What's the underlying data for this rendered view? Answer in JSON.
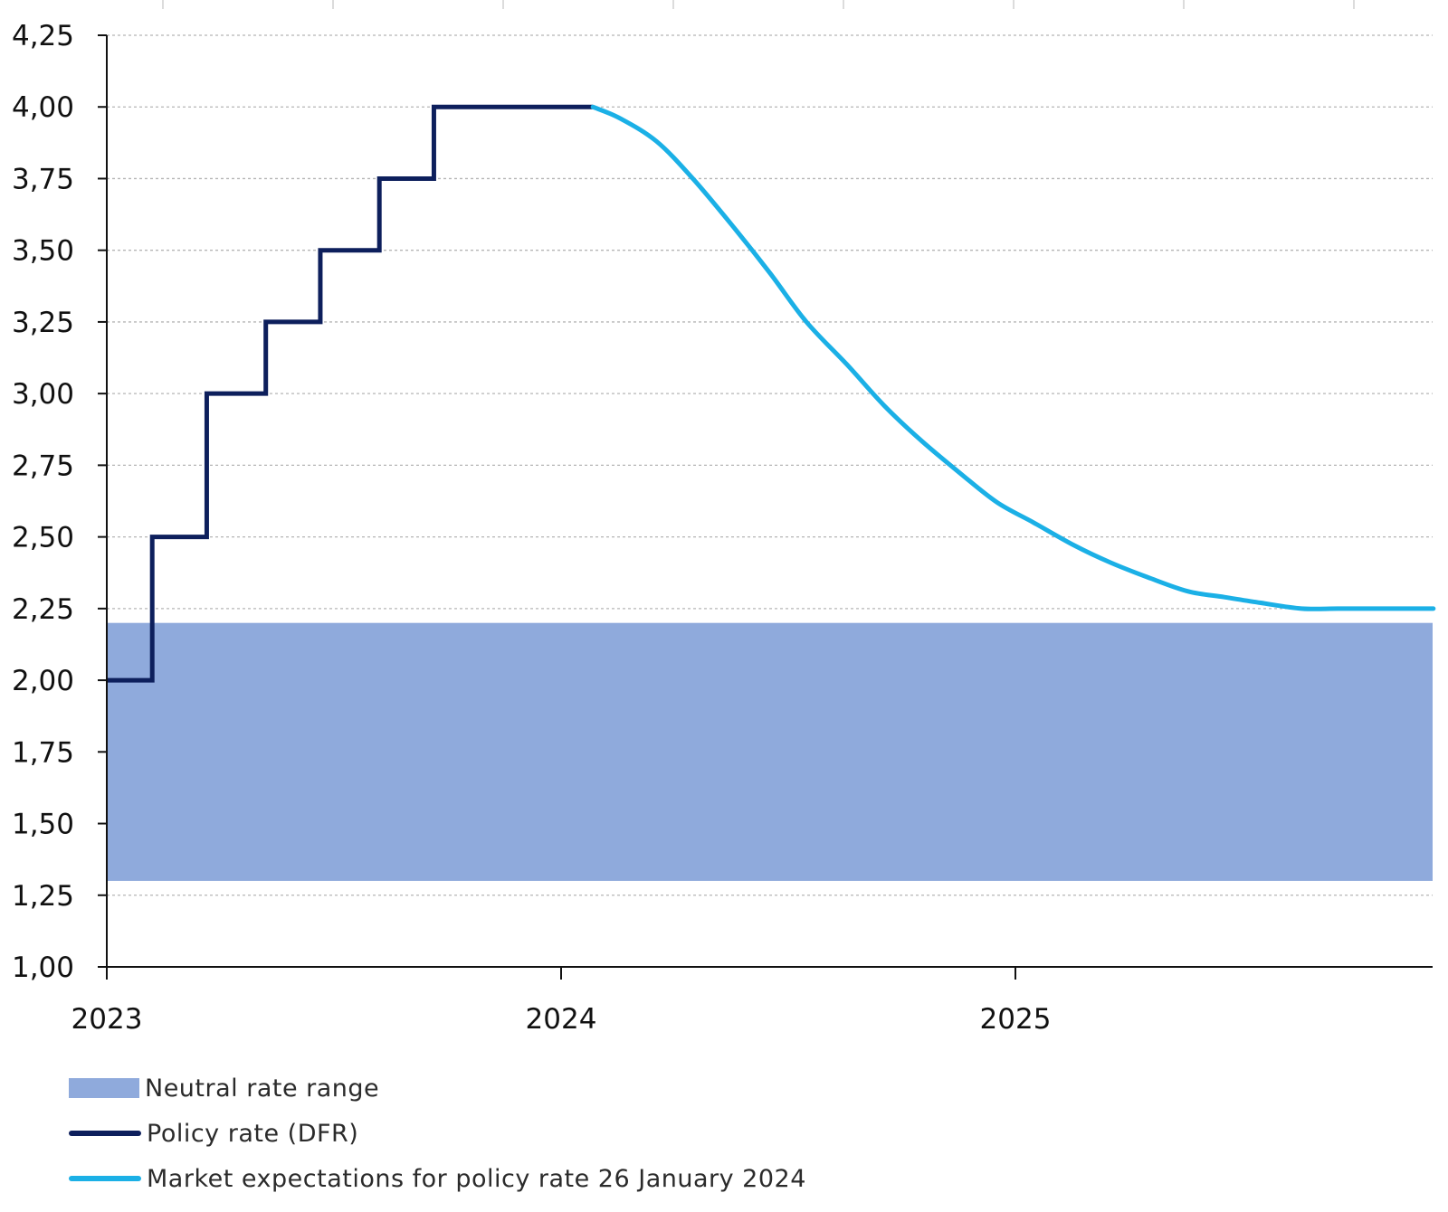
{
  "chart_data": {
    "type": "line",
    "title": "",
    "xlabel": "",
    "ylabel": "",
    "ylim": [
      1.0,
      4.25
    ],
    "xlim": [
      2023.0,
      2025.92
    ],
    "y_ticks": [
      "1,00",
      "1,25",
      "1,50",
      "1,75",
      "2,00",
      "2,25",
      "2,50",
      "2,75",
      "3,00",
      "3,25",
      "3,50",
      "3,75",
      "4,00",
      "4,25"
    ],
    "y_tick_values": [
      1.0,
      1.25,
      1.5,
      1.75,
      2.0,
      2.25,
      2.5,
      2.75,
      3.0,
      3.25,
      3.5,
      3.75,
      4.0,
      4.25
    ],
    "x_ticks": [
      "2023",
      "2024",
      "2025"
    ],
    "x_tick_values": [
      2023.0,
      2024.0,
      2025.0
    ],
    "grid": true,
    "legend_position": "bottom-left",
    "neutral_band": {
      "name": "Neutral rate range",
      "y_low": 1.3,
      "y_high": 2.2,
      "color": "#8faadc"
    },
    "series": [
      {
        "name": "Policy rate (DFR)",
        "color": "#0d1f5c",
        "style": "step",
        "x": [
          2023.0,
          2023.1,
          2023.22,
          2023.35,
          2023.47,
          2023.6,
          2023.72,
          2024.07
        ],
        "y": [
          2.0,
          2.5,
          3.0,
          3.25,
          3.5,
          3.75,
          4.0,
          4.0
        ]
      },
      {
        "name": "Market expectations for policy rate 26 January 2024",
        "color": "#1bb0e6",
        "style": "smooth",
        "x": [
          2024.07,
          2024.13,
          2024.21,
          2024.29,
          2024.38,
          2024.46,
          2024.54,
          2024.63,
          2024.71,
          2024.79,
          2024.88,
          2024.96,
          2025.04,
          2025.13,
          2025.21,
          2025.29,
          2025.38,
          2025.46,
          2025.54,
          2025.63,
          2025.71,
          2025.79,
          2025.92
        ],
        "y": [
          4.0,
          3.96,
          3.88,
          3.75,
          3.58,
          3.42,
          3.25,
          3.1,
          2.96,
          2.84,
          2.72,
          2.62,
          2.55,
          2.47,
          2.41,
          2.36,
          2.31,
          2.29,
          2.27,
          2.25,
          2.25,
          2.25,
          2.25
        ]
      }
    ]
  }
}
